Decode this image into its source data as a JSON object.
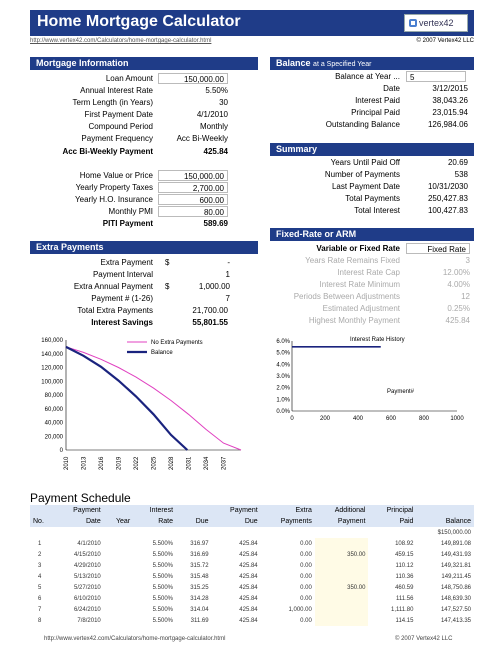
{
  "header": {
    "title": "Home Mortgage Calculator",
    "logo": "vertex42",
    "link": "http://www.vertex42.com/Calculators/home-mortgage-calculator.html",
    "copyright": "© 2007 Vertex42 LLC"
  },
  "mortgage": {
    "title": "Mortgage Information",
    "rows": [
      {
        "label": "Loan Amount",
        "value": "150,000.00"
      },
      {
        "label": "Annual Interest Rate",
        "value": "5.50%"
      },
      {
        "label": "Term Length (in Years)",
        "value": "30"
      },
      {
        "label": "First Payment Date",
        "value": "4/1/2010"
      },
      {
        "label": "Compound Period",
        "value": "Monthly"
      },
      {
        "label": "Payment Frequency",
        "value": "Acc Bi-Weekly"
      }
    ],
    "payment_label": "Acc Bi-Weekly Payment",
    "payment_value": "425.84",
    "rows2": [
      {
        "label": "Home Value or Price",
        "value": "150,000.00"
      },
      {
        "label": "Yearly Property Taxes",
        "value": "2,700.00"
      },
      {
        "label": "Yearly H.O. Insurance",
        "value": "600.00"
      },
      {
        "label": "Monthly PMI",
        "value": "80.00"
      }
    ],
    "piti_label": "PITI Payment",
    "piti_value": "589.69"
  },
  "extra": {
    "title": "Extra Payments",
    "rows": [
      {
        "label": "Extra Payment",
        "cur": "$",
        "value": "-"
      },
      {
        "label": "Payment Interval",
        "cur": "",
        "value": "1"
      },
      {
        "label": "Extra Annual Payment",
        "cur": "$",
        "value": "1,000.00"
      },
      {
        "label": "Payment # (1-26)",
        "cur": "",
        "value": "7"
      }
    ],
    "total_label": "Total Extra Payments",
    "total_value": "21,700.00",
    "savings_label": "Interest Savings",
    "savings_value": "55,801.55"
  },
  "balance": {
    "title": "Balance",
    "title_small": "at a Specified Year",
    "year_label": "Balance at Year ...",
    "year_value": "5",
    "rows": [
      {
        "label": "Date",
        "value": "3/12/2015"
      },
      {
        "label": "Interest Paid",
        "value": "38,043.26"
      },
      {
        "label": "Principal Paid",
        "value": "23,015.94"
      },
      {
        "label": "Outstanding Balance",
        "value": "126,984.06"
      }
    ]
  },
  "summary": {
    "title": "Summary",
    "rows": [
      {
        "label": "Years Until Paid Off",
        "value": "20.69"
      },
      {
        "label": "Number of Payments",
        "value": "538"
      },
      {
        "label": "Last Payment Date",
        "value": "10/31/2030"
      },
      {
        "label": "Total Payments",
        "value": "250,427.83"
      },
      {
        "label": "Total Interest",
        "value": "100,427.83"
      }
    ]
  },
  "arm": {
    "title": "Fixed-Rate or ARM",
    "head_label": "Variable or Fixed Rate",
    "head_value": "Fixed Rate",
    "rows": [
      {
        "label": "Years Rate Remains Fixed",
        "value": "3"
      },
      {
        "label": "Interest Rate Cap",
        "value": "12.00%"
      },
      {
        "label": "Interest Rate Minimum",
        "value": "4.00%"
      },
      {
        "label": "Periods Between Adjustments",
        "value": "12"
      },
      {
        "label": "Estimated Adjustment",
        "value": "0.25%"
      },
      {
        "label": "Highest Monthly Payment",
        "value": "425.84"
      }
    ]
  },
  "chart_data": [
    {
      "type": "line",
      "legend": [
        "No Extra Payments",
        "Balance"
      ],
      "ylim": [
        0,
        160000
      ],
      "yticks": [
        "160,000",
        "140,000",
        "120,000",
        "100,000",
        "80,000",
        "60,000",
        "40,000",
        "20,000",
        "0"
      ],
      "xticks": [
        "2010",
        "2013",
        "2016",
        "2019",
        "2022",
        "2025",
        "2028",
        "2031",
        "2034",
        "2037"
      ],
      "series": [
        {
          "name": "No Extra Payments",
          "color": "#e040c0",
          "x": [
            2010,
            2013,
            2016,
            2019,
            2022,
            2025,
            2028,
            2031,
            2034,
            2037,
            2040
          ],
          "y": [
            150000,
            142000,
            132000,
            120000,
            106000,
            90000,
            72000,
            52000,
            30000,
            10000,
            0
          ]
        },
        {
          "name": "Balance",
          "color": "#1a237e",
          "x": [
            2010,
            2013,
            2016,
            2019,
            2022,
            2025,
            2028,
            2030.8
          ],
          "y": [
            150000,
            137000,
            121000,
            101000,
            78000,
            52000,
            22000,
            0
          ]
        }
      ]
    },
    {
      "type": "line",
      "legend": [
        "Interest Rate History"
      ],
      "xlabel": "Payment#",
      "ylim": [
        0,
        6
      ],
      "yticks": [
        "6.0%",
        "5.0%",
        "4.0%",
        "3.0%",
        "2.0%",
        "1.0%",
        "0.0%"
      ],
      "xticks": [
        "0",
        "200",
        "400",
        "600",
        "800",
        "1000"
      ],
      "series": [
        {
          "name": "Interest Rate History",
          "color": "#1a237e",
          "x": [
            0,
            538
          ],
          "y": [
            5.5,
            5.5
          ]
        }
      ]
    }
  ],
  "schedule": {
    "title": "Payment Schedule",
    "headers1": [
      "Payment",
      "",
      "Interest",
      "Payment",
      "Extra",
      "Additional",
      "Principal",
      ""
    ],
    "headers2": [
      "No.",
      "Date",
      "Year",
      "Rate",
      "Due",
      "Due",
      "Payments",
      "Payment",
      "Paid",
      "Balance"
    ],
    "start_balance": "$150,000.00",
    "rows": [
      [
        "1",
        "4/1/2010",
        "",
        "5.500%",
        "316.97",
        "425.84",
        "0.00",
        "",
        "108.92",
        "149,891.08"
      ],
      [
        "2",
        "4/15/2010",
        "",
        "5.500%",
        "316.69",
        "425.84",
        "0.00",
        "350.00",
        "459.15",
        "149,431.93"
      ],
      [
        "3",
        "4/29/2010",
        "",
        "5.500%",
        "315.72",
        "425.84",
        "0.00",
        "",
        "110.12",
        "149,321.81"
      ],
      [
        "4",
        "5/13/2010",
        "",
        "5.500%",
        "315.48",
        "425.84",
        "0.00",
        "",
        "110.36",
        "149,211.45"
      ],
      [
        "5",
        "5/27/2010",
        "",
        "5.500%",
        "315.25",
        "425.84",
        "0.00",
        "350.00",
        "460.59",
        "148,750.86"
      ],
      [
        "6",
        "6/10/2010",
        "",
        "5.500%",
        "314.28",
        "425.84",
        "0.00",
        "",
        "111.56",
        "148,639.30"
      ],
      [
        "7",
        "6/24/2010",
        "",
        "5.500%",
        "314.04",
        "425.84",
        "1,000.00",
        "",
        "1,111.80",
        "147,527.50"
      ],
      [
        "8",
        "7/8/2010",
        "",
        "5.500%",
        "311.69",
        "425.84",
        "0.00",
        "",
        "114.15",
        "147,413.35"
      ]
    ]
  },
  "footer": {
    "link": "http://www.vertex42.com/Calculators/home-mortgage-calculator.html",
    "copy": "© 2007 Vertex42 LLC"
  }
}
